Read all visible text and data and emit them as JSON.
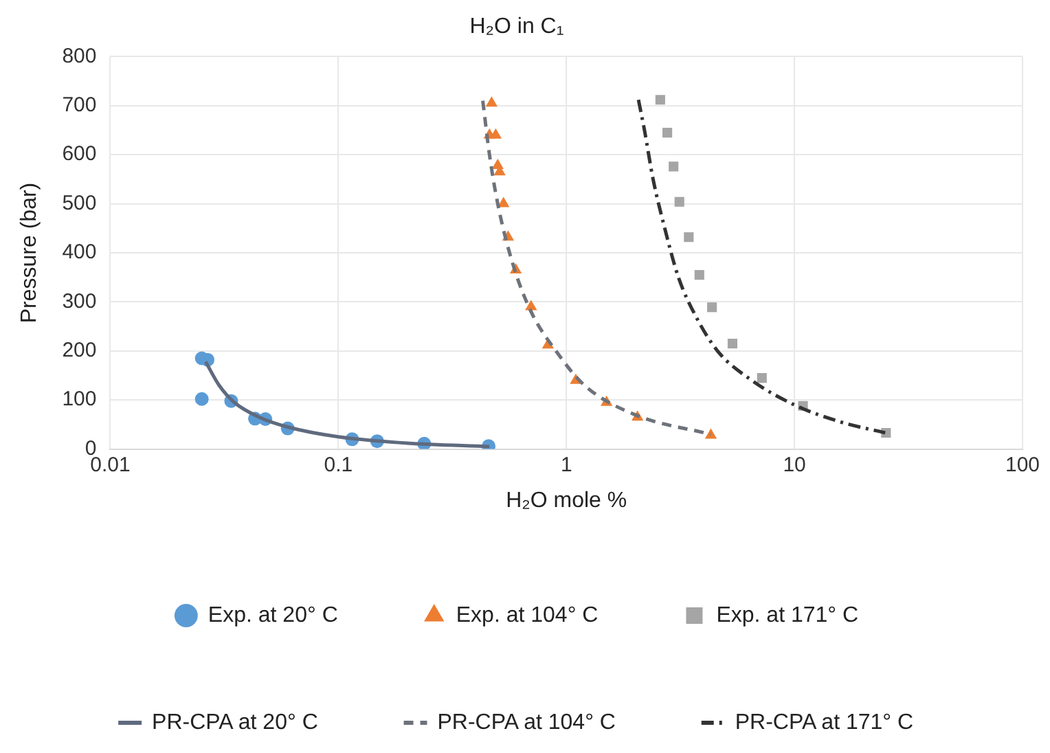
{
  "chart_data": {
    "type": "scatter",
    "title": "H₂O in C₁",
    "xlabel": "H₂O mole %",
    "ylabel": "Pressure (bar)",
    "log": "x",
    "xlim": [
      0.01,
      100
    ],
    "xticks": [
      0.01,
      0.1,
      1,
      10,
      100
    ],
    "ylim": [
      0,
      800
    ],
    "yticks": [
      0,
      100,
      200,
      300,
      400,
      500,
      600,
      700,
      800
    ],
    "grid": true,
    "legend": "bottom",
    "series": [
      {
        "name": "Exp. at 20° C",
        "marker": "circle",
        "color": "#5b9bd5",
        "x": [
          0.0252,
          0.0267,
          0.0252,
          0.0339,
          0.0431,
          0.0479,
          0.06,
          0.115,
          0.148,
          0.238,
          0.456
        ],
        "values": [
          185,
          182,
          102,
          98,
          62,
          61,
          42,
          20,
          16,
          11,
          6
        ]
      },
      {
        "name": "Exp. at 104° C",
        "marker": "triangle",
        "color": "#ed7d31",
        "x": [
          0.47,
          0.46,
          0.49,
          0.5,
          0.51,
          0.53,
          0.555,
          0.6,
          0.7,
          0.83,
          1.1,
          1.5,
          2.05,
          4.3
        ],
        "values": [
          705,
          640,
          640,
          578,
          565,
          500,
          432,
          365,
          290,
          212,
          140,
          95,
          65,
          28
        ]
      },
      {
        "name": "Exp. at 171° C",
        "marker": "square",
        "color": "#a5a5a5",
        "x": [
          2.58,
          2.77,
          2.95,
          3.13,
          3.44,
          3.83,
          4.35,
          5.35,
          7.2,
          10.9,
          25.2
        ],
        "values": [
          712,
          645,
          576,
          504,
          432,
          355,
          289,
          215,
          145,
          88,
          33
        ]
      },
      {
        "name": "PR-CPA at 20° C",
        "type": "line",
        "marker": "none",
        "line_style": "solid",
        "color": "#5f6a7e",
        "x": [
          0.0262,
          0.03,
          0.035,
          0.045,
          0.06,
          0.1,
          0.2,
          0.46
        ],
        "values": [
          178,
          130,
          95,
          65,
          45,
          25,
          12,
          5
        ]
      },
      {
        "name": "PR-CPA at 104° C",
        "type": "line",
        "marker": "none",
        "line_style": "dashed",
        "color": "#6e727a",
        "x": [
          0.43,
          0.46,
          0.5,
          0.58,
          0.7,
          0.9,
          1.2,
          2,
          4.3
        ],
        "values": [
          710,
          600,
          500,
          380,
          280,
          200,
          130,
          70,
          30
        ]
      },
      {
        "name": "PR-CPA at 171° C",
        "type": "line",
        "marker": "none",
        "line_style": "dashdot",
        "color": "#333333",
        "x": [
          2.07,
          2.2,
          2.4,
          2.7,
          3.1,
          3.7,
          4.6,
          6.5,
          10,
          16,
          25
        ],
        "values": [
          712,
          650,
          550,
          450,
          350,
          270,
          200,
          140,
          90,
          55,
          33
        ]
      }
    ]
  }
}
